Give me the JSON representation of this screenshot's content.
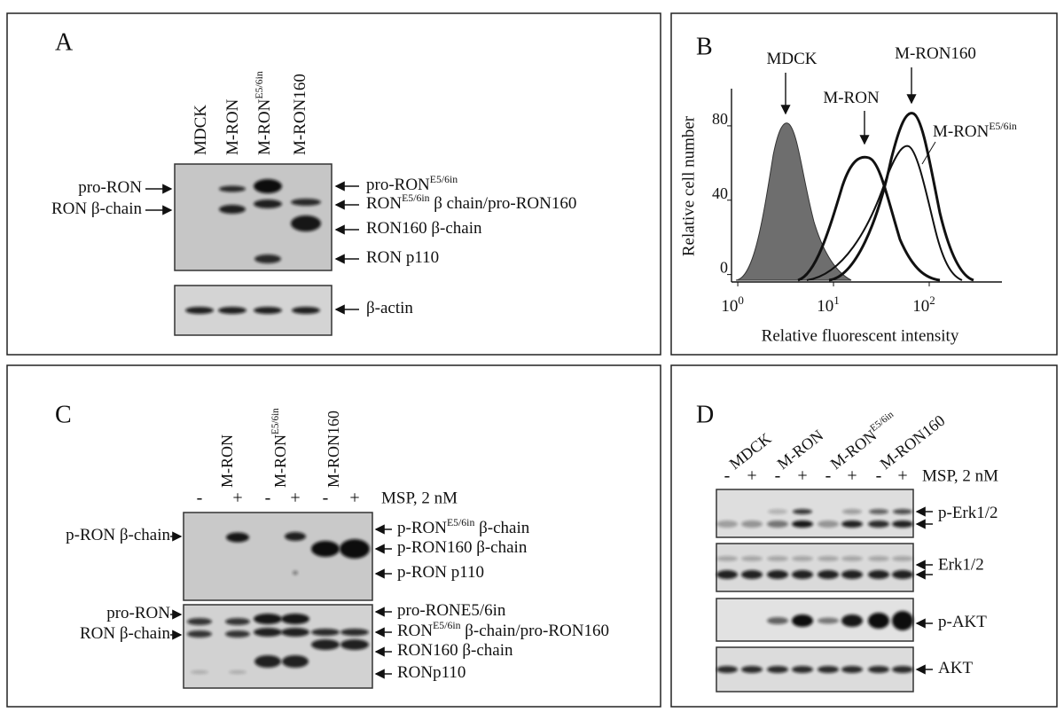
{
  "panels": {
    "a": {
      "label": "A",
      "lanes": [
        {
          "text": "MDCK"
        },
        {
          "text": "M-RON"
        },
        {
          "text": "M-RON",
          "sup": "E5/6in"
        },
        {
          "text": "M-RON160"
        }
      ],
      "left_labels": [
        {
          "text": "pro-RON"
        },
        {
          "text": "RON β-chain"
        }
      ],
      "right_labels": [
        {
          "text": "pro-RON",
          "sup": "E5/6in"
        },
        {
          "text": "RON",
          "sup": "E5/6in",
          "after": " β chain/pro-RON160"
        },
        {
          "text": "RON160 β-chain"
        },
        {
          "text": "RON p110"
        },
        {
          "text": "β-actin"
        }
      ]
    },
    "b": {
      "label": "B",
      "xscale": "log",
      "xlim": [
        0.86,
        575
      ],
      "ylim": [
        -4,
        100
      ],
      "xticks": [
        {
          "value": 1,
          "base": "10",
          "exp": "0"
        },
        {
          "value": 10,
          "base": "10",
          "exp": "1"
        },
        {
          "value": 100,
          "base": "10",
          "exp": "2"
        }
      ],
      "yticks": [
        0,
        40,
        80
      ],
      "xlabel": "Relative fluorescent intensity",
      "ylabel": "Relative cell number",
      "curve_labels": [
        {
          "text": "MDCK"
        },
        {
          "text": "M-RON"
        },
        {
          "text": "M-RON160"
        },
        {
          "text": "M-RON",
          "sup": "E5/6in"
        }
      ]
    },
    "c": {
      "label": "C",
      "lanes": [
        {
          "text": "M-RON"
        },
        {
          "text": "M-RON",
          "sup": "E5/6in"
        },
        {
          "text": "M-RON160"
        }
      ],
      "treatment": [
        "-",
        "+",
        "-",
        "+",
        "-",
        "+"
      ],
      "treatment_label": "MSP, 2 nM",
      "left_labels": [
        {
          "text": "p-RON β-chain"
        },
        {
          "text": "pro-RON"
        },
        {
          "text": "RON β-chain"
        }
      ],
      "right_labels": [
        {
          "text": "p-RON",
          "sup": "E5/6in",
          "after": " β-chain"
        },
        {
          "text": "p-RON160 β-chain"
        },
        {
          "text": "p-RON p110"
        },
        {
          "text": "pro-RONE5/6in"
        },
        {
          "text": "RON",
          "sup": "E5/6in",
          "after": " β-chain/pro-RON160"
        },
        {
          "text": "RON160 β-chain"
        },
        {
          "text": "RONp110"
        }
      ]
    },
    "d": {
      "label": "D",
      "lanes": [
        {
          "text": "MDCK"
        },
        {
          "text": "M-RON"
        },
        {
          "text": "M-RON",
          "sup": "E5/6in"
        },
        {
          "text": "M-RON160"
        }
      ],
      "treatment": [
        "-",
        "+",
        "-",
        "+",
        "-",
        "+",
        "-",
        "+"
      ],
      "treatment_label": "MSP, 2 nM",
      "right_labels": [
        {
          "text": "p-Erk1/2"
        },
        {
          "text": "Erk1/2"
        },
        {
          "text": "p-AKT"
        },
        {
          "text": "AKT"
        }
      ]
    }
  }
}
